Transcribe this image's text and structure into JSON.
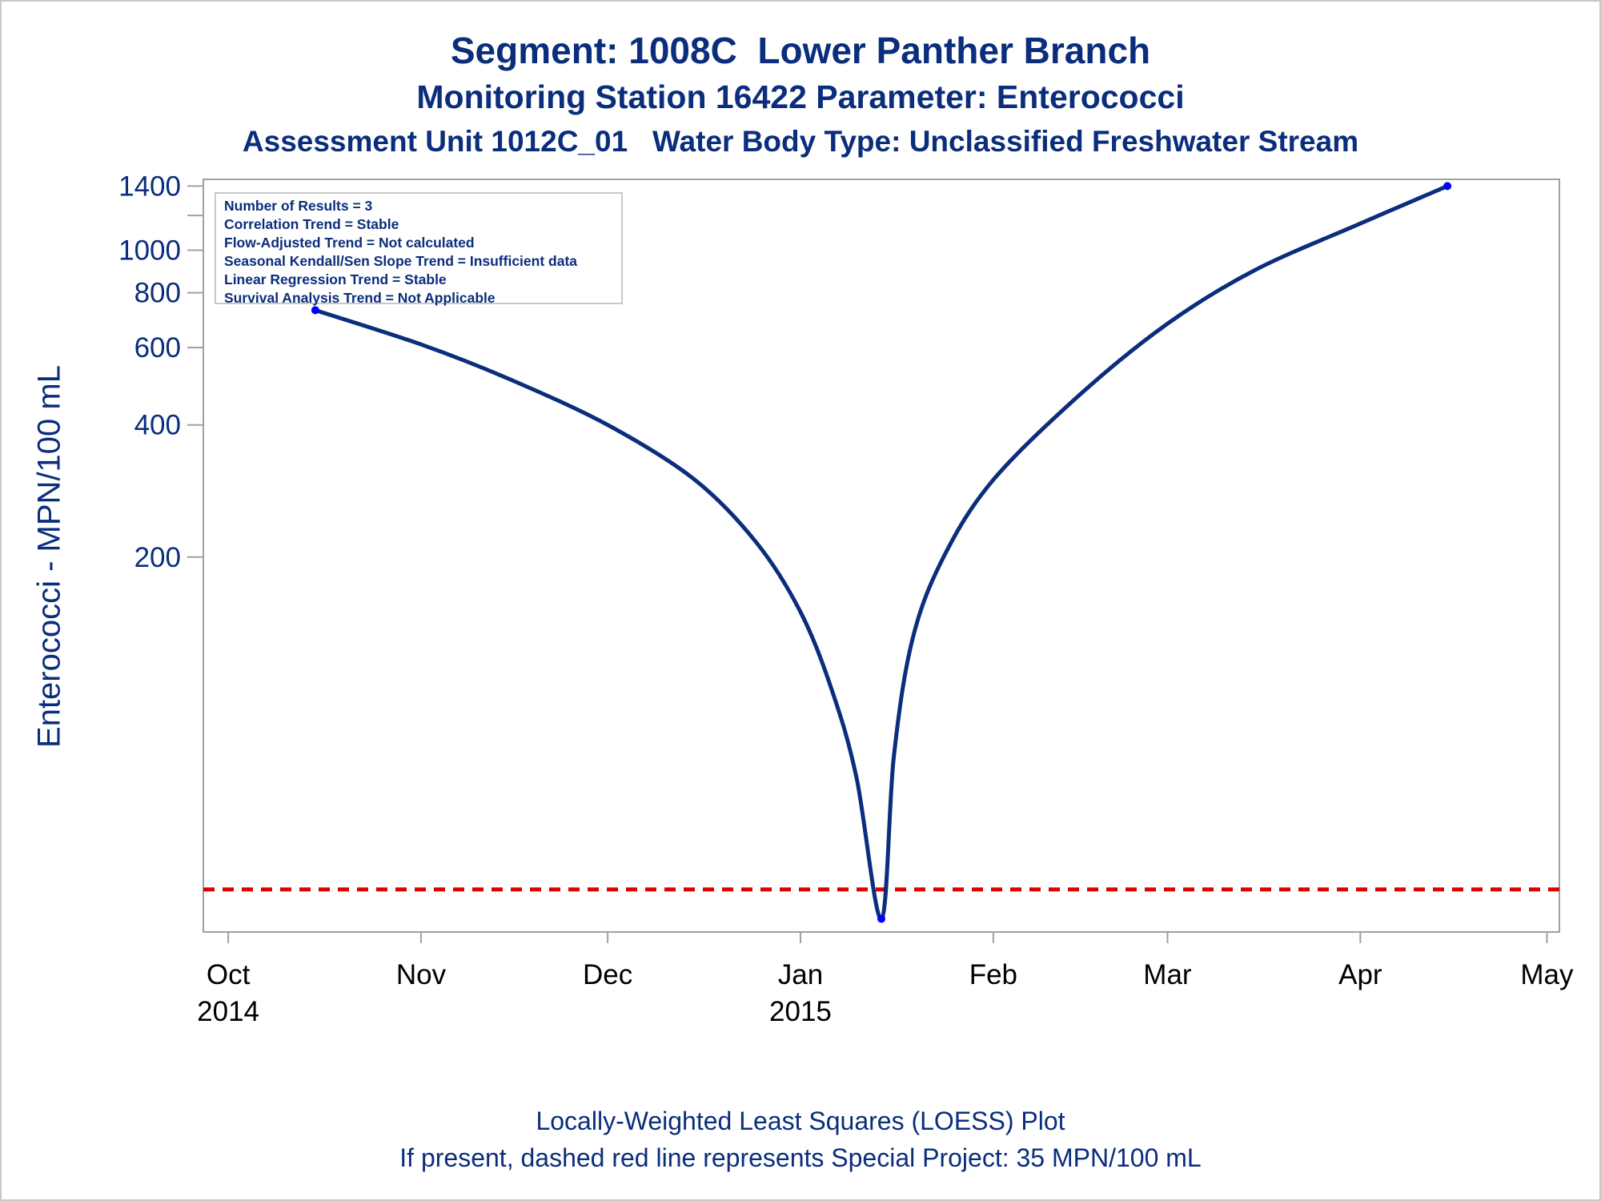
{
  "titles": {
    "line1": "Segment: 1008C  Lower Panther Branch",
    "line2": "Monitoring Station 16422 Parameter: Enterococci",
    "line3": "Assessment Unit 1012C_01   Water Body Type: Unclassified Freshwater Stream"
  },
  "footnotes": {
    "line1": "Locally-Weighted Least Squares (LOESS) Plot",
    "line2": "If present, dashed red line represents Special Project: 35 MPN/100 mL"
  },
  "stats_box": [
    "Number of Results = 3",
    "Correlation Trend = Stable",
    "Flow-Adjusted Trend = Not calculated",
    "Seasonal Kendall/Sen Slope Trend = Insufficient data",
    "Linear Regression Trend = Stable",
    "Survival Analysis Trend = Not Applicable"
  ],
  "colors": {
    "title": "#0a2d7c",
    "curve": "#0a2d7c",
    "points": "#0000ff",
    "reference_line": "#e00000",
    "frame": "#a0a0a0"
  },
  "chart_data": {
    "type": "line",
    "ylabel": "Enterococci - MPN/100 mL",
    "xlabel": "",
    "y_scale": "log",
    "ylim": [
      28,
      1450
    ],
    "xlim": [
      "2014-09-27",
      "2015-05-03"
    ],
    "yticks": [
      {
        "value": 1400,
        "label": "1400"
      },
      {
        "value": 1200,
        "label": ""
      },
      {
        "value": 1000,
        "label": "1000"
      },
      {
        "value": 800,
        "label": "800"
      },
      {
        "value": 600,
        "label": "600"
      },
      {
        "value": 400,
        "label": "400"
      },
      {
        "value": 200,
        "label": "200"
      }
    ],
    "xticks": [
      {
        "date": "2014-10-01",
        "label": "Oct",
        "sublabel": "2014"
      },
      {
        "date": "2014-11-01",
        "label": "Nov",
        "sublabel": ""
      },
      {
        "date": "2014-12-01",
        "label": "Dec",
        "sublabel": ""
      },
      {
        "date": "2015-01-01",
        "label": "Jan",
        "sublabel": "2015"
      },
      {
        "date": "2015-02-01",
        "label": "Feb",
        "sublabel": ""
      },
      {
        "date": "2015-03-01",
        "label": "Mar",
        "sublabel": ""
      },
      {
        "date": "2015-04-01",
        "label": "Apr",
        "sublabel": ""
      },
      {
        "date": "2015-05-01",
        "label": "May",
        "sublabel": ""
      }
    ],
    "points": [
      {
        "date": "2014-10-15",
        "value": 730
      },
      {
        "date": "2015-01-14",
        "value": 30
      },
      {
        "date": "2015-04-15",
        "value": 1400
      }
    ],
    "series": [
      {
        "kind": "loess",
        "values": [
          {
            "date": "2014-10-15",
            "value": 730
          },
          {
            "date": "2014-11-01",
            "value": 610
          },
          {
            "date": "2014-11-15",
            "value": 510
          },
          {
            "date": "2014-12-01",
            "value": 400
          },
          {
            "date": "2014-12-15",
            "value": 300
          },
          {
            "date": "2014-12-25",
            "value": 215
          },
          {
            "date": "2015-01-01",
            "value": 150
          },
          {
            "date": "2015-01-06",
            "value": 100
          },
          {
            "date": "2015-01-10",
            "value": 63
          },
          {
            "date": "2015-01-14",
            "value": 30
          },
          {
            "date": "2015-01-16",
            "value": 70
          },
          {
            "date": "2015-01-19",
            "value": 130
          },
          {
            "date": "2015-01-24",
            "value": 200
          },
          {
            "date": "2015-02-01",
            "value": 300
          },
          {
            "date": "2015-02-15",
            "value": 470
          },
          {
            "date": "2015-03-01",
            "value": 680
          },
          {
            "date": "2015-03-15",
            "value": 900
          },
          {
            "date": "2015-04-01",
            "value": 1150
          },
          {
            "date": "2015-04-15",
            "value": 1400
          }
        ]
      }
    ],
    "reference_line": {
      "value": 35,
      "style": "dashed"
    },
    "grid": false,
    "legend": "top-left"
  }
}
